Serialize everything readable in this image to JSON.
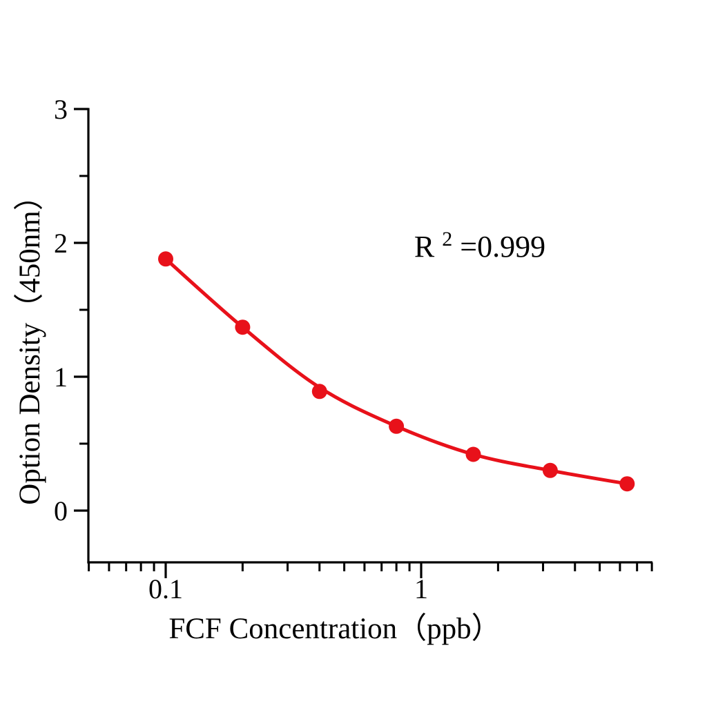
{
  "chart_data": {
    "type": "scatter",
    "title": "",
    "xlabel": "FCF Concentration（ppb）",
    "ylabel": "Option Density（450nm）",
    "xscale": "log",
    "xlim": [
      0.05,
      8
    ],
    "ylim": [
      -0.39,
      3
    ],
    "grid": false,
    "legend": "none",
    "x": [
      0.1,
      0.2,
      0.4,
      0.8,
      1.6,
      3.2,
      6.4
    ],
    "y": [
      1.88,
      1.37,
      0.89,
      0.63,
      0.42,
      0.3,
      0.2
    ],
    "fit_curve_y": [
      1.88,
      1.37,
      0.92,
      0.63,
      0.42,
      0.3,
      0.2
    ],
    "x_major_ticks": [
      0.1,
      1
    ],
    "x_major_tick_labels": [
      "0.1",
      "1"
    ],
    "y_major_ticks": [
      0,
      1,
      2,
      3
    ],
    "y_major_tick_labels": [
      "0",
      "1",
      "2",
      "3"
    ],
    "y_minor_step": 0.5,
    "annotation": {
      "text": "R²=0.999",
      "base": "R",
      "sup": "2",
      "rest": "=0.999"
    },
    "series_color": "#e8111a",
    "axis_color": "#000000"
  }
}
